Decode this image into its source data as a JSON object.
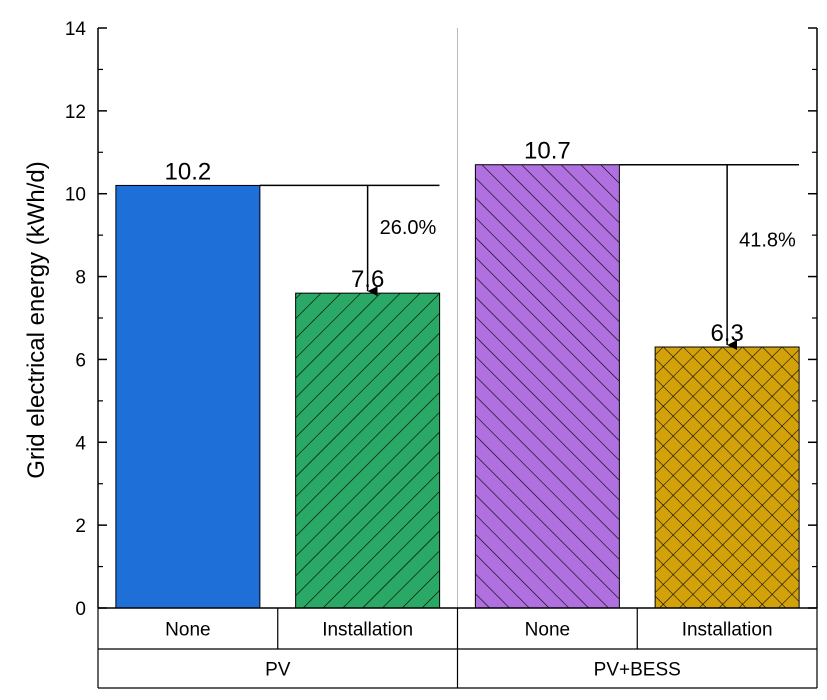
{
  "chart_data": {
    "type": "bar",
    "ylabel": "Grid electrical energy (kWh/d)",
    "ylim": [
      0,
      14
    ],
    "yticks": [
      0,
      2,
      4,
      6,
      8,
      10,
      12,
      14
    ],
    "groups": [
      {
        "label": "PV",
        "bars": [
          {
            "category": "None",
            "value": 10.2,
            "value_label": "10.2",
            "color": "#1f6fd8",
            "pattern": "solid"
          },
          {
            "category": "Installation",
            "value": 7.6,
            "value_label": "7.6",
            "color": "#2aa865",
            "pattern": "diagonal"
          }
        ],
        "reduction_label": "26.0%"
      },
      {
        "label": "PV+BESS",
        "bars": [
          {
            "category": "None",
            "value": 10.7,
            "value_label": "10.7",
            "color": "#b070e0",
            "pattern": "diagonal-reverse"
          },
          {
            "category": "Installation",
            "value": 6.3,
            "value_label": "6.3",
            "color": "#d3a20a",
            "pattern": "crosshatch"
          }
        ],
        "reduction_label": "41.8%"
      }
    ],
    "grid": false,
    "legend": "none"
  }
}
